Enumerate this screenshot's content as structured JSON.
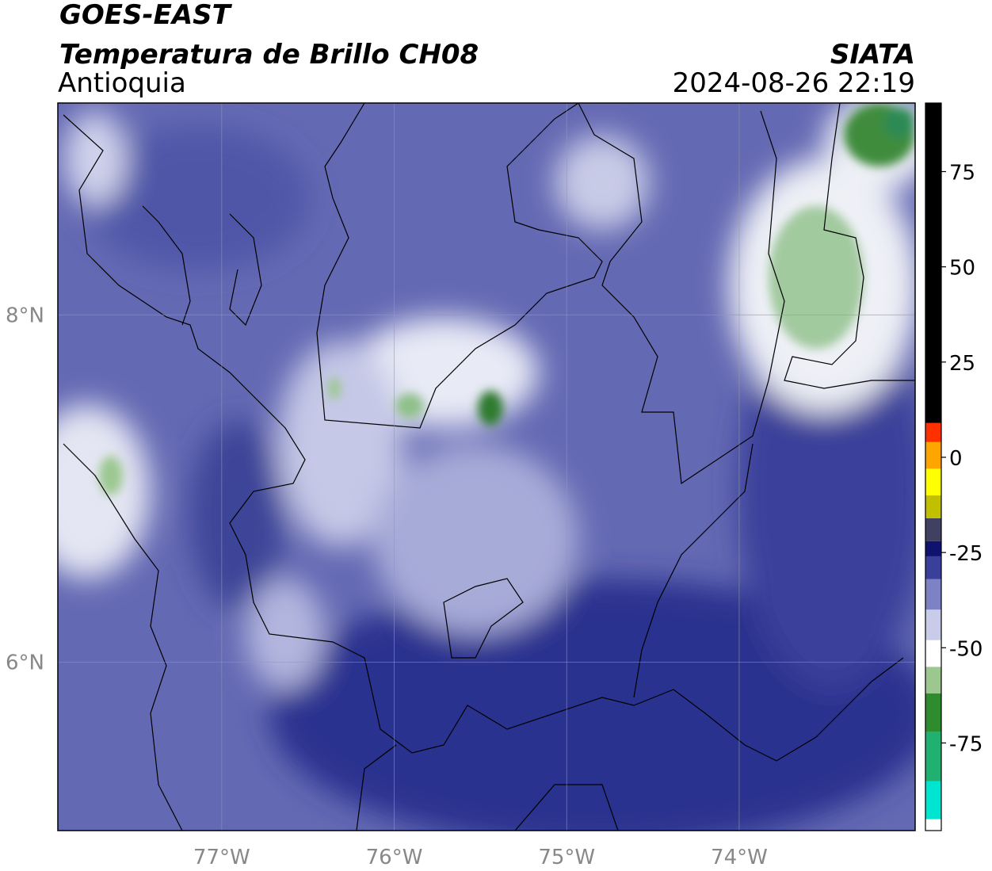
{
  "header": {
    "title": "GOES-EAST",
    "subtitle": "Temperatura de Brillo CH08",
    "region": "Antioquia",
    "source": "SIATA",
    "timestamp": "2024-08-26 22:19"
  },
  "map": {
    "lonlim": [
      -77.95,
      -72.98
    ],
    "latlim": [
      5.03,
      9.22
    ],
    "lonticks": [
      {
        "value": -77,
        "label": "77°W"
      },
      {
        "value": -76,
        "label": "76°W"
      },
      {
        "value": -75,
        "label": "75°W"
      },
      {
        "value": -74,
        "label": "74°W"
      }
    ],
    "latticks": [
      {
        "value": 8,
        "label": "8°N"
      },
      {
        "value": 6,
        "label": "6°N"
      }
    ],
    "grid": true
  },
  "colorbar": {
    "range": [
      -98,
      93
    ],
    "ticks": [
      -75,
      -50,
      -25,
      0,
      25,
      50,
      75
    ],
    "stops": [
      {
        "value": -98,
        "color": "#ffffff"
      },
      {
        "value": -95,
        "color": "#00e5d0"
      },
      {
        "value": -85,
        "color": "#20b070"
      },
      {
        "value": -72,
        "color": "#2e8b2e"
      },
      {
        "value": -62,
        "color": "#9cc890"
      },
      {
        "value": -55,
        "color": "#ffffff"
      },
      {
        "value": -48,
        "color": "#c8cce8"
      },
      {
        "value": -40,
        "color": "#7c82c4"
      },
      {
        "value": -32,
        "color": "#3a3f9a"
      },
      {
        "value": -26,
        "color": "#10136e"
      },
      {
        "value": -22,
        "color": "#404060"
      },
      {
        "value": -16,
        "color": "#c0c000"
      },
      {
        "value": -10,
        "color": "#ffff00"
      },
      {
        "value": -3,
        "color": "#ffa500"
      },
      {
        "value": 4,
        "color": "#ff3000"
      },
      {
        "value": 9,
        "color": "#000000"
      }
    ]
  }
}
